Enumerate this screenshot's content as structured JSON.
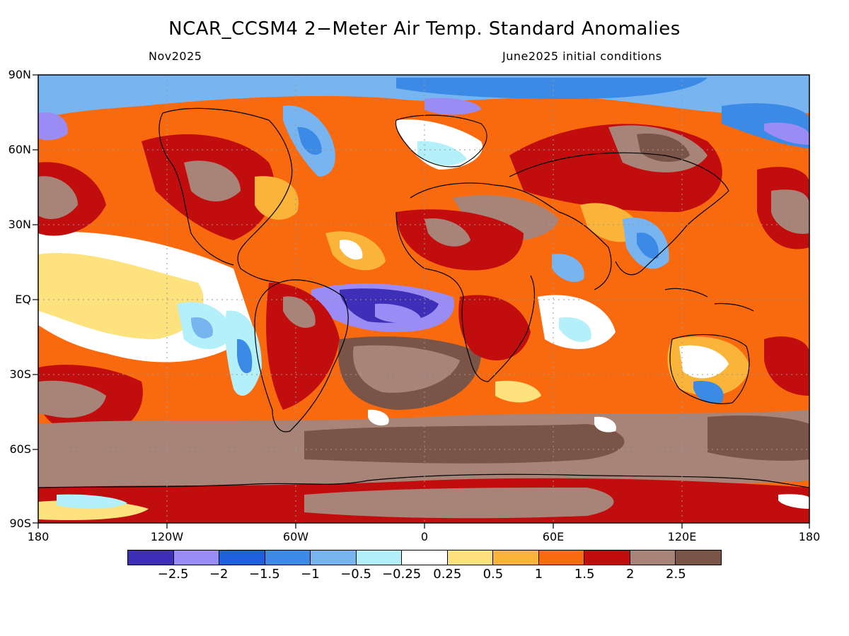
{
  "title": "NCAR_CCSM4 2−Meter Air Temp. Standard Anomalies",
  "subtitle_left": "Nov2025",
  "subtitle_right": "June2025 initial conditions",
  "lat_labels": [
    "90N",
    "60N",
    "30N",
    "EQ",
    "30S",
    "60S",
    "90S"
  ],
  "lon_labels": [
    "180",
    "120W",
    "60W",
    "0",
    "60E",
    "120E",
    "180"
  ],
  "colorbar": {
    "colors": [
      "#3d2fb7",
      "#9b8cf5",
      "#1e5fdc",
      "#3b8ae6",
      "#78b4f0",
      "#b4f0fa",
      "#ffffff",
      "#fde27d",
      "#fbb43a",
      "#f96a0f",
      "#c10d0d",
      "#a88478",
      "#7a5446"
    ],
    "labels": [
      "−2.5",
      "−2",
      "−1.5",
      "−1",
      "−0.5",
      "−0.25",
      "0.25",
      "0.5",
      "1",
      "1.5",
      "2",
      "2.5"
    ]
  },
  "regions": [
    {
      "name": "tropical-east-pacific",
      "level": "0.25"
    },
    {
      "name": "equatorial-atlantic",
      "level": "-2.5"
    },
    {
      "name": "southern-ocean",
      "level": "2.5"
    },
    {
      "name": "north-pacific-west",
      "level": "2.5"
    },
    {
      "name": "arctic-canada",
      "level": "-1.5"
    }
  ]
}
